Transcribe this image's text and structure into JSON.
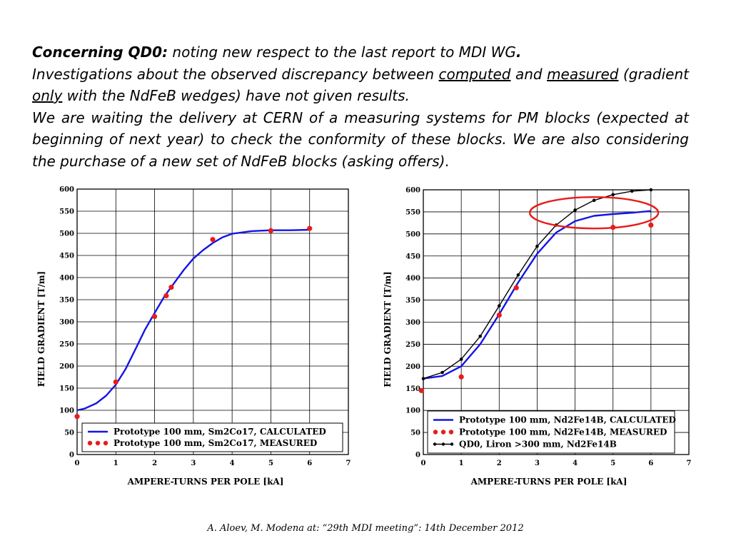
{
  "text": {
    "line1_bold": "Concerning QD0:",
    "line1_rest": " noting new respect to the last report to MDI WG",
    "line1_dot": ".",
    "p2_a": "Investigations about the observed discrepancy between ",
    "p2_computed": "computed",
    "p2_and": " and ",
    "p2_measured": "measured",
    "p2_b": " (gradient ",
    "p2_only": "only",
    "p2_c": " with the NdFeB wedges) have not given results.",
    "p3": "We are waiting the delivery at CERN of a measuring systems for PM blocks (expected at beginning of next year) to check the conformity of these blocks. We are also considering the purchase of a new set of NdFeB blocks (asking offers)."
  },
  "footer": "A. Aloev, M. Modena at: “29th MDI meeting”: 14th December 2012",
  "colors": {
    "calc": "#1414e6",
    "meas": "#e81c1c",
    "qd0": "#000000",
    "annotation": "#e81c1c"
  },
  "chart_data": [
    {
      "type": "line",
      "xlabel": "AMPERE-TURNS PER POLE [kA]",
      "ylabel": "FIELD GRADIENT [T/m]",
      "xlim": [
        0,
        7
      ],
      "ylim": [
        0,
        600
      ],
      "xticks": [
        "0",
        "1",
        "2",
        "3",
        "4",
        "5",
        "6",
        "7"
      ],
      "yticks": [
        "0",
        "50",
        "100",
        "150",
        "200",
        "250",
        "300",
        "350",
        "400",
        "450",
        "500",
        "550",
        "600"
      ],
      "grid": true,
      "legend_position": "bottom-right",
      "series": [
        {
          "name": "Prototype 100 mm, Sm2Co17, CALCULATED",
          "style": "line",
          "color": "#1414e6",
          "x": [
            0,
            0.2,
            0.5,
            0.75,
            1,
            1.25,
            1.5,
            1.75,
            2,
            2.25,
            2.5,
            2.75,
            3,
            3.25,
            3.5,
            3.75,
            4,
            4.25,
            4.5,
            5,
            5.5,
            6
          ],
          "y": [
            100,
            104,
            116,
            133,
            158,
            193,
            237,
            282,
            320,
            357,
            387,
            417,
            443,
            462,
            478,
            491,
            499,
            502,
            505,
            507,
            507,
            508
          ]
        },
        {
          "name": "Prototype 100 mm, Sm2Co17, MEASURED",
          "style": "markers",
          "color": "#e81c1c",
          "x": [
            0,
            1,
            2,
            2.3,
            2.43,
            3.5,
            5,
            6
          ],
          "y": [
            86,
            164,
            312,
            359,
            378,
            486,
            506,
            511
          ]
        }
      ]
    },
    {
      "type": "line",
      "xlabel": "AMPERE-TURNS PER POLE [kA]",
      "ylabel": "FIELD GRADIENT [T/m]",
      "xlim": [
        0,
        7
      ],
      "ylim": [
        0,
        600
      ],
      "xticks": [
        "0",
        "1",
        "2",
        "3",
        "4",
        "5",
        "6",
        "7"
      ],
      "yticks": [
        "0",
        "50",
        "100",
        "150",
        "200",
        "250",
        "300",
        "350",
        "400",
        "450",
        "500",
        "550",
        "600"
      ],
      "grid": true,
      "legend_position": "bottom-right",
      "annotation": "red ellipse around the high-current region",
      "series": [
        {
          "name": "Prototype 100 mm, Nd2Fe14B, CALCULATED",
          "style": "line",
          "color": "#1414e6",
          "x": [
            0,
            0.5,
            1,
            1.5,
            2,
            2.5,
            3,
            3.5,
            4,
            4.5,
            5,
            5.5,
            6
          ],
          "y": [
            172,
            178,
            200,
            250,
            318,
            390,
            455,
            503,
            529,
            541,
            545,
            548,
            552
          ]
        },
        {
          "name": "Prototype 100 mm, Nd2Fe14B, MEASURED",
          "style": "markers",
          "color": "#e81c1c",
          "x": [
            -0.05,
            1,
            2,
            2.45,
            5,
            6
          ],
          "y": [
            145,
            176,
            316,
            378,
            515,
            520
          ]
        },
        {
          "name": "QD0, Liron >300 mm, Nd2Fe14B",
          "style": "line-markers",
          "color": "#000000",
          "x": [
            0,
            0.5,
            1,
            1.5,
            2,
            2.5,
            3,
            3.5,
            4,
            4.5,
            5,
            5.5,
            6
          ],
          "y": [
            172,
            186,
            216,
            268,
            337,
            407,
            472,
            520,
            554,
            576,
            589,
            597,
            600
          ]
        }
      ]
    }
  ]
}
